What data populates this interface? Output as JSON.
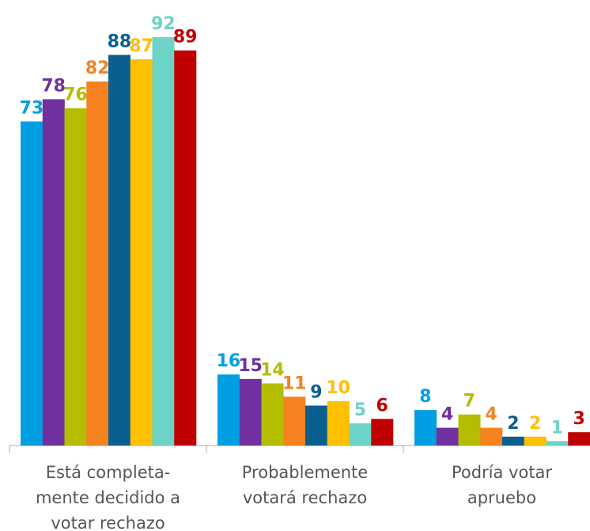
{
  "chart_data": {
    "type": "bar",
    "categories": [
      "Está completa-\nmente decidido a\nvotar rechazo",
      "Probablemente\nvotará rechazo",
      "Podría votar\napruebo"
    ],
    "series": [
      {
        "color": "#009fe3",
        "values": [
          73,
          16,
          8
        ]
      },
      {
        "color": "#7030a0",
        "values": [
          78,
          15,
          4
        ]
      },
      {
        "color": "#b5bd00",
        "values": [
          76,
          14,
          7
        ]
      },
      {
        "color": "#f5821f",
        "values": [
          82,
          11,
          4
        ]
      },
      {
        "color": "#0a5f8f",
        "values": [
          88,
          9,
          2
        ]
      },
      {
        "color": "#ffc000",
        "values": [
          87,
          10,
          2
        ]
      },
      {
        "color": "#6dd3c7",
        "values": [
          92,
          5,
          1
        ]
      },
      {
        "color": "#c00000",
        "values": [
          89,
          6,
          3
        ]
      }
    ],
    "ylim": [
      0,
      100
    ]
  }
}
